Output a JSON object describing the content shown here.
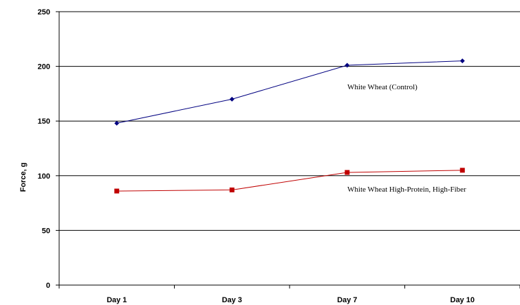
{
  "chart_data": {
    "type": "line",
    "title": "",
    "xlabel": "",
    "ylabel": "Force, g",
    "categories": [
      "Day 1",
      "Day 3",
      "Day 7",
      "Day 10"
    ],
    "ylim": [
      0,
      250
    ],
    "yticks": [
      0,
      50,
      100,
      150,
      200,
      250
    ],
    "grid": "horizontal",
    "series": [
      {
        "name": "White Wheat (Control)",
        "values": [
          148,
          170,
          201,
          205
        ],
        "color": "#000080",
        "marker": "diamond"
      },
      {
        "name": "White Wheat High-Protein, High-Fiber",
        "values": [
          86,
          87,
          103,
          105
        ],
        "color": "#C00000",
        "marker": "square"
      }
    ]
  }
}
